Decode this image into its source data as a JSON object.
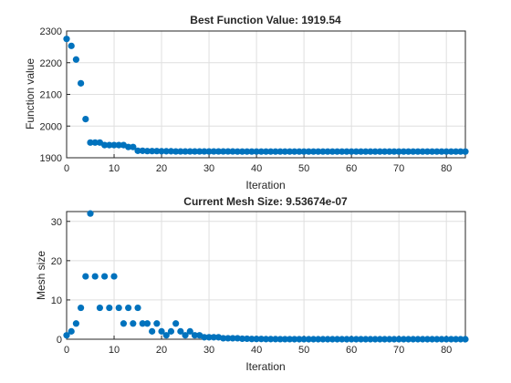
{
  "chart_data": [
    {
      "type": "scatter",
      "title": "Best Function Value: 1919.54",
      "xlabel": "Iteration",
      "ylabel": "Function value",
      "xlim": [
        0,
        84
      ],
      "ylim": [
        1900,
        2300
      ],
      "xticks": [
        0,
        10,
        20,
        30,
        40,
        50,
        60,
        70,
        80
      ],
      "yticks": [
        1900,
        2000,
        2100,
        2200,
        2300
      ],
      "grid": true,
      "marker_color": "#0072bd",
      "x": [
        0,
        1,
        2,
        3,
        4,
        5,
        6,
        7,
        8,
        9,
        10,
        11,
        12,
        13,
        14,
        15,
        16,
        17,
        18,
        19,
        20,
        21,
        22,
        23,
        24,
        25,
        26,
        27,
        28,
        29,
        30,
        31,
        32,
        33,
        34,
        35,
        36,
        37,
        38,
        39,
        40,
        41,
        42,
        43,
        44,
        45,
        46,
        47,
        48,
        49,
        50,
        51,
        52,
        53,
        54,
        55,
        56,
        57,
        58,
        59,
        60,
        61,
        62,
        63,
        64,
        65,
        66,
        67,
        68,
        69,
        70,
        71,
        72,
        73,
        74,
        75,
        76,
        77,
        78,
        79,
        80,
        81,
        82,
        83,
        84
      ],
      "y": [
        2275,
        2253,
        2210,
        2135,
        2022,
        1948,
        1948,
        1948,
        1940,
        1940,
        1940,
        1940,
        1940,
        1934,
        1934,
        1922,
        1922,
        1921,
        1921,
        1921,
        1920.5,
        1920.5,
        1920.5,
        1920,
        1920,
        1920,
        1920,
        1920,
        1920,
        1920,
        1920,
        1920,
        1920,
        1920,
        1920,
        1920,
        1919.6,
        1919.6,
        1919.6,
        1919.6,
        1919.6,
        1919.6,
        1919.6,
        1919.6,
        1919.6,
        1919.6,
        1919.6,
        1919.6,
        1919.6,
        1919.6,
        1919.6,
        1919.6,
        1919.6,
        1919.6,
        1919.6,
        1919.6,
        1919.6,
        1919.6,
        1919.6,
        1919.6,
        1919.6,
        1919.6,
        1919.6,
        1919.6,
        1919.6,
        1919.6,
        1919.6,
        1919.6,
        1919.6,
        1919.6,
        1919.6,
        1919.6,
        1919.6,
        1919.6,
        1919.6,
        1919.6,
        1919.6,
        1919.6,
        1919.6,
        1919.6,
        1919.6,
        1919.6,
        1919.6,
        1919.6,
        1919.54
      ]
    },
    {
      "type": "scatter",
      "title": "Current Mesh Size: 9.53674e-07",
      "xlabel": "Iteration",
      "ylabel": "Mesh size",
      "xlim": [
        0,
        84
      ],
      "ylim": [
        0,
        32.5
      ],
      "xticks": [
        0,
        10,
        20,
        30,
        40,
        50,
        60,
        70,
        80
      ],
      "yticks": [
        0,
        10,
        20,
        30
      ],
      "grid": true,
      "marker_color": "#0072bd",
      "x": [
        0,
        1,
        2,
        3,
        4,
        5,
        6,
        7,
        8,
        9,
        10,
        11,
        12,
        13,
        14,
        15,
        16,
        17,
        18,
        19,
        20,
        21,
        22,
        23,
        24,
        25,
        26,
        27,
        28,
        29,
        30,
        31,
        32,
        33,
        34,
        35,
        36,
        37,
        38,
        39,
        40,
        41,
        42,
        43,
        44,
        45,
        46,
        47,
        48,
        49,
        50,
        51,
        52,
        53,
        54,
        55,
        56,
        57,
        58,
        59,
        60,
        61,
        62,
        63,
        64,
        65,
        66,
        67,
        68,
        69,
        70,
        71,
        72,
        73,
        74,
        75,
        76,
        77,
        78,
        79,
        80,
        81,
        82,
        83,
        84
      ],
      "y": [
        1,
        2,
        4,
        8,
        16,
        32,
        16,
        8,
        16,
        8,
        16,
        8,
        4,
        8,
        4,
        8,
        4,
        4,
        2,
        4,
        2,
        1,
        2,
        4,
        2,
        1,
        2,
        1,
        1,
        0.5,
        0.5,
        0.5,
        0.5,
        0.25,
        0.25,
        0.25,
        0.25,
        0.125,
        0.125,
        0.0625,
        0.0625,
        0.0625,
        0.03125,
        0.03125,
        0.03125,
        0.0156,
        0.0156,
        0.0156,
        0.0078,
        0.0078,
        0.0039,
        0.0039,
        0.002,
        0.002,
        0.001,
        0.001,
        0.0005,
        0.0005,
        0.00024,
        0.00024,
        0.00012,
        0.00012,
        6e-05,
        6e-05,
        3e-05,
        3e-05,
        1.5e-05,
        1.5e-05,
        7.6e-06,
        7.6e-06,
        3.8e-06,
        3.8e-06,
        1.9e-06,
        1.9e-06,
        9.5e-07,
        9.5e-07,
        9.5e-07,
        9.5e-07,
        9.5e-07,
        9.5e-07,
        9.5e-07,
        9.5e-07,
        9.5e-07,
        9.5e-07,
        9.53674e-07
      ]
    }
  ]
}
